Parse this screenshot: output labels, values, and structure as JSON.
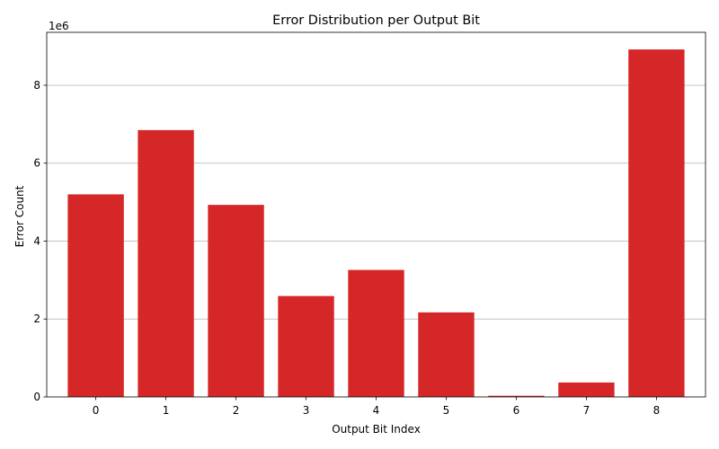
{
  "chart_data": {
    "type": "bar",
    "title": "Error Distribution per Output Bit",
    "xlabel": "Output Bit Index",
    "ylabel": "Error Count",
    "y_offset_label": "1e6",
    "categories": [
      "0",
      "1",
      "2",
      "3",
      "4",
      "5",
      "6",
      "7",
      "8"
    ],
    "values": [
      5200000,
      6850000,
      4930000,
      2590000,
      3260000,
      2170000,
      30000,
      370000,
      8920000
    ],
    "ylim": [
      0,
      9360000
    ],
    "yticks": [
      0,
      2000000,
      4000000,
      6000000,
      8000000
    ],
    "ytick_labels": [
      "0",
      "2",
      "4",
      "6",
      "8"
    ],
    "grid": "y",
    "bar_color": "#d62728"
  }
}
